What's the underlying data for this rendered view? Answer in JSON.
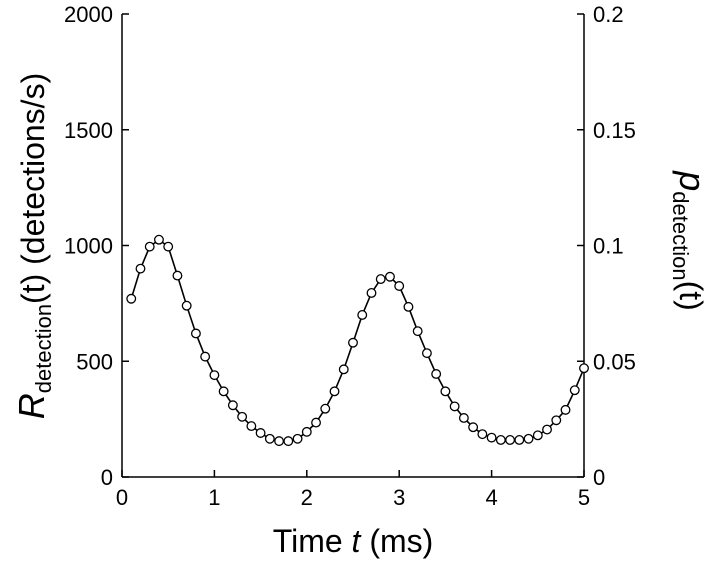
{
  "chart_data": {
    "type": "line",
    "x_axis": {
      "label_prefix": "Time ",
      "label_var": "t",
      "label_suffix": " (ms)",
      "range": [
        0,
        5
      ],
      "ticks": [
        "0",
        "1",
        "2",
        "3",
        "4",
        "5"
      ]
    },
    "y_left": {
      "label_main": "R",
      "label_sub": "detection",
      "label_arg": "(t)",
      "label_unit": " (detections/s)",
      "range": [
        0,
        2000
      ],
      "ticks": [
        "0",
        "500",
        "1000",
        "1500",
        "2000"
      ]
    },
    "y_right": {
      "label_main": "p",
      "label_sub": "detection",
      "label_arg": "(t)",
      "range": [
        0,
        0.2
      ],
      "ticks": [
        "0",
        "0.05",
        "0.1",
        "0.15",
        "0.2"
      ]
    },
    "grid": false,
    "series": [
      {
        "marker": "open-circle",
        "color": "#000000",
        "x": [
          0.1,
          0.2,
          0.3,
          0.4,
          0.5,
          0.6,
          0.7,
          0.8,
          0.9,
          1.0,
          1.1,
          1.2,
          1.3,
          1.4,
          1.5,
          1.6,
          1.7,
          1.8,
          1.9,
          2.0,
          2.1,
          2.2,
          2.3,
          2.4,
          2.5,
          2.6,
          2.7,
          2.8,
          2.9,
          3.0,
          3.1,
          3.2,
          3.3,
          3.4,
          3.5,
          3.6,
          3.7,
          3.8,
          3.9,
          4.0,
          4.1,
          4.2,
          4.3,
          4.4,
          4.5,
          4.6,
          4.7,
          4.8,
          4.9,
          5.0
        ],
        "y": [
          770,
          900,
          995,
          1025,
          995,
          870,
          740,
          620,
          520,
          440,
          370,
          310,
          260,
          220,
          190,
          165,
          155,
          155,
          165,
          195,
          235,
          295,
          370,
          465,
          580,
          700,
          795,
          855,
          865,
          825,
          735,
          630,
          535,
          445,
          370,
          305,
          255,
          215,
          185,
          170,
          160,
          160,
          160,
          165,
          180,
          205,
          245,
          290,
          375,
          470
        ]
      }
    ]
  }
}
